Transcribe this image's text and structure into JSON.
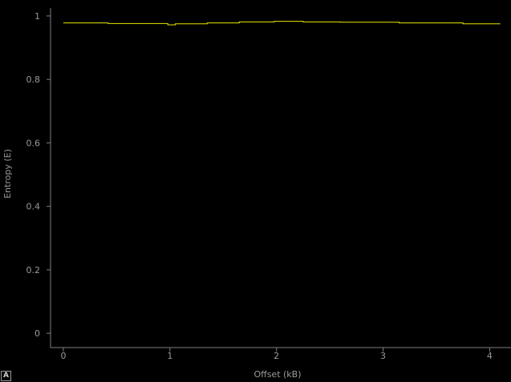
{
  "chart_data": {
    "type": "line",
    "title": "",
    "xlabel": "Offset (kB)",
    "ylabel": "Entropy (E)",
    "xlim": [
      -0.12,
      4.2
    ],
    "ylim": [
      -0.045,
      1.025
    ],
    "x_ticks": [
      0,
      1,
      2,
      3,
      4
    ],
    "x_tick_labels": [
      "0",
      "1",
      "2",
      "3",
      "4"
    ],
    "y_ticks": [
      0,
      0.2,
      0.4,
      0.6,
      0.8,
      1
    ],
    "y_tick_labels": [
      "0",
      "0.2",
      "0.4",
      "0.6",
      "0.8",
      "1"
    ],
    "grid": false,
    "legend": "none",
    "series": [
      {
        "color": "#e8e800",
        "x": [
          0.0,
          0.42,
          0.42,
          0.98,
          0.98,
          1.05,
          1.05,
          1.35,
          1.35,
          1.65,
          1.65,
          1.98,
          1.98,
          2.25,
          2.25,
          2.6,
          2.6,
          3.15,
          3.15,
          3.75,
          3.75,
          4.1
        ],
        "y": [
          0.978,
          0.978,
          0.976,
          0.976,
          0.972,
          0.972,
          0.975,
          0.975,
          0.978,
          0.978,
          0.981,
          0.981,
          0.983,
          0.983,
          0.981,
          0.981,
          0.98,
          0.98,
          0.978,
          0.978,
          0.975,
          0.975
        ]
      }
    ]
  },
  "controls": {
    "auto_range_label": "A"
  }
}
